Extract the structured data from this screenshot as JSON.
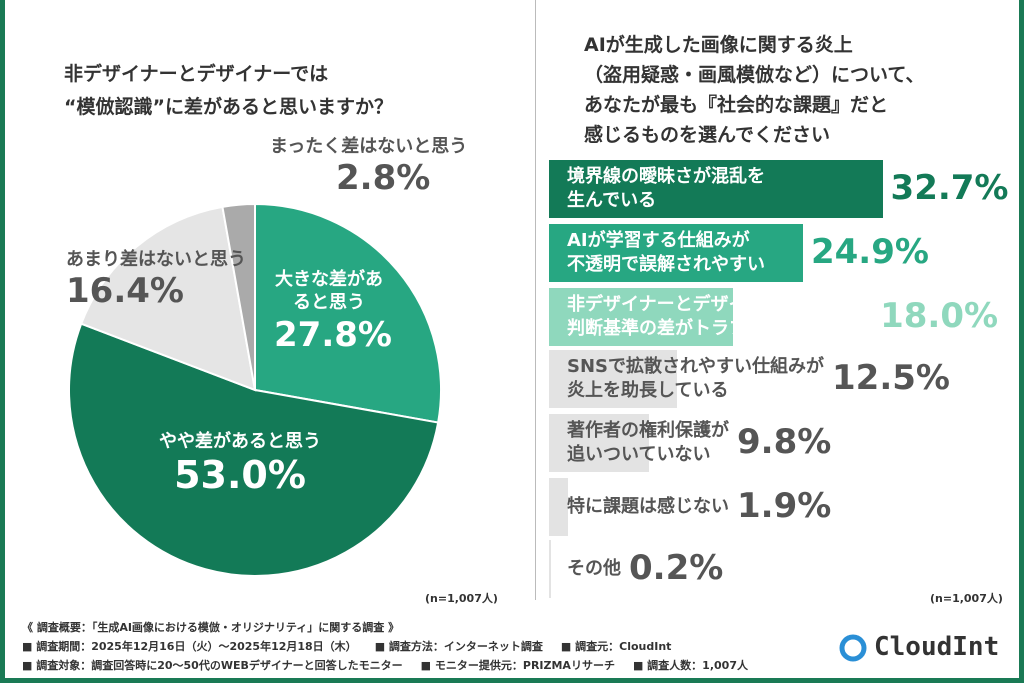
{
  "chart_data": [
    {
      "type": "pie",
      "title": "非デザイナーとデザイナーでは\n“模倣認識”に差があると思いますか？",
      "slices": [
        {
          "label": "大きな差があると思う",
          "value": 27.8,
          "color": "#27a782"
        },
        {
          "label": "やや差があると思う",
          "value": 53.0,
          "color": "#137a57"
        },
        {
          "label": "あまり差はないと思う",
          "value": 16.4,
          "color": "#e5e5e5"
        },
        {
          "label": "まったく差はないと思う",
          "value": 2.8,
          "color": "#aaaaaa"
        }
      ],
      "note": "(n=1,007人)"
    },
    {
      "type": "bar",
      "orientation": "horizontal",
      "title": "AIが生成した画像に関する炎上\n（盗用疑惑・画風模倣など）について、\nあなたが最も『社会的な課題』だと\n感じるものを選んでください",
      "categories": [
        "境界線の曖昧さが混乱を\n生んでいる",
        "AIが学習する仕組みが\n不透明で誤解されやすい",
        "非デザイナーとデザイナーの\n判断基準の差がトラブルを生んでいる",
        "SNSで拡散されやすい仕組みが\n炎上を助長している",
        "著作者の権利保護が\n追いついていない",
        "特に課題は感じない",
        "その他"
      ],
      "values": [
        32.7,
        24.9,
        18.0,
        12.5,
        9.8,
        1.9,
        0.2
      ],
      "colors": [
        "#137a57",
        "#27a782",
        "#8fd8bd",
        "#e3e3e3",
        "#e3e3e3",
        "#e3e3e3",
        "#e3e3e3"
      ],
      "value_colors": [
        "#137a57",
        "#27a782",
        "#8fd8bd",
        "#555555",
        "#555555",
        "#555555",
        "#555555"
      ],
      "label_colors": [
        "#ffffff",
        "#ffffff",
        "#ffffff",
        "#555555",
        "#555555",
        "#555555",
        "#555555"
      ],
      "note": "(n=1,007人)"
    }
  ],
  "footer": {
    "summary": "《 調査概要：「生成AI画像における模倣・オリジナリティ」に関する調査 》",
    "line2": [
      "■ 調査期間：2025年12月16日（火）～2025年12月18日（木）",
      "■ 調査方法：インターネット調査",
      "■ 調査元：CloudInt"
    ],
    "line3": [
      "■ 調査対象：調査回答時に20～50代のWEBデザイナーと回答したモニター",
      "■ モニター提供元：PRIZMAリサーチ",
      "■ 調査人数：1,007人"
    ]
  },
  "logo": {
    "text": "CloudInt"
  }
}
